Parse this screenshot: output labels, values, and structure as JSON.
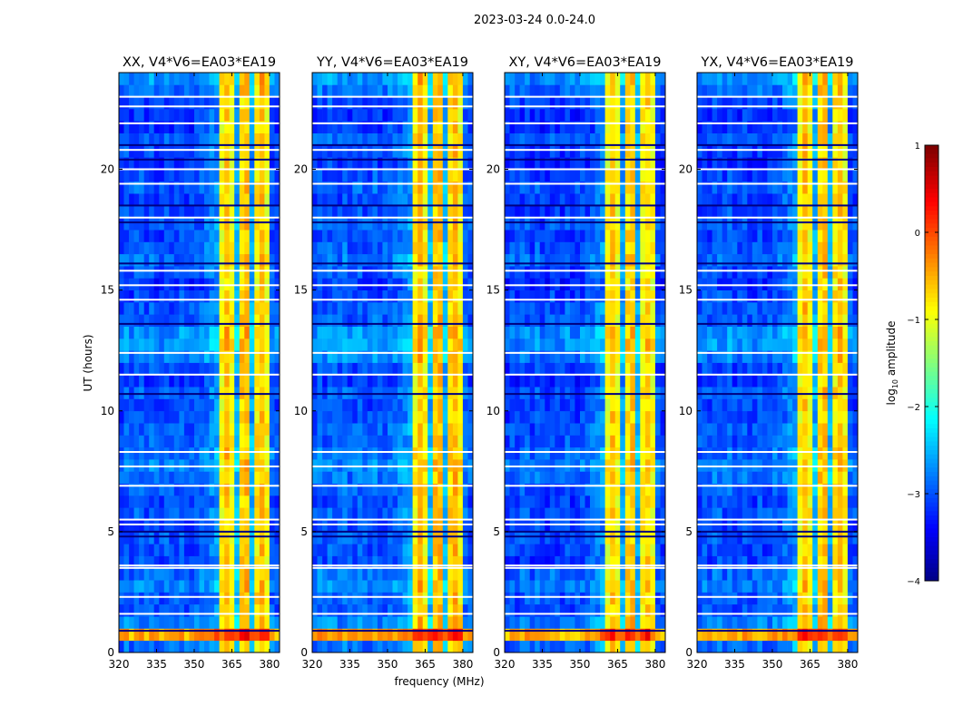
{
  "chart_data": {
    "type": "heatmap",
    "title": "2023-03-24 0.0-24.0",
    "xlabel": "frequency (MHz)",
    "ylabel": "UT (hours)",
    "xlim": [
      320,
      384
    ],
    "ylim": [
      0,
      24
    ],
    "xticks": [
      320,
      335,
      350,
      365,
      380
    ],
    "yticks": [
      0,
      5,
      10,
      15,
      20
    ],
    "freq_bin_mhz": 2,
    "time_bin_hours": 0.5,
    "panels": [
      {
        "title": "XX, V4*V6=EA03*EA19",
        "offset": 0.0
      },
      {
        "title": "YY, V4*V6=EA03*EA19",
        "offset": 0.05
      },
      {
        "title": "XY, V4*V6=EA03*EA19",
        "offset": -0.05
      },
      {
        "title": "YX, V4*V6=EA03*EA19",
        "offset": 0.0
      }
    ],
    "freq_profile_log10": [
      -3.1,
      -3.0,
      -3.1,
      -3.0,
      -3.0,
      -3.1,
      -3.0,
      -3.1,
      -3.1,
      -3.0,
      -3.1,
      -3.1,
      -3.0,
      -3.1,
      -3.1,
      -3.0,
      -3.0,
      -2.9,
      -2.8,
      -2.7,
      -0.9,
      -0.6,
      -0.9,
      -2.6,
      -0.7,
      -0.6,
      -2.6,
      -0.8,
      -0.6,
      -0.9,
      -3.0,
      -3.1
    ],
    "time_offsets": [
      0.2,
      2.6,
      0.3,
      0.1,
      0.1,
      0.3,
      0.2,
      0.0,
      0.0,
      0.1,
      0.0,
      0.1,
      0.0,
      0.1,
      0.2,
      0.3,
      0.2,
      0.1,
      0.1,
      0.0,
      0.0,
      0.1,
      -0.1,
      0.0,
      0.3,
      0.4,
      0.4,
      0.1,
      0.1,
      0.0,
      -0.1,
      0.0,
      0.2,
      0.1,
      0.0,
      0.1,
      0.0,
      0.0,
      0.1,
      0.0,
      -0.1,
      0.0,
      0.1,
      -0.1,
      -0.1,
      0.0,
      0.2,
      0.4
    ],
    "flagged_hours": [
      1.6,
      2.3,
      3.5,
      3.6,
      5.3,
      5.5,
      6.9,
      7.7,
      8.3,
      11.5,
      12.4,
      14.6,
      15.2,
      15.8,
      18.0,
      19.4,
      20.0,
      20.8,
      21.9,
      22.6,
      23.0
    ],
    "dropout_hours": [
      0.9,
      4.8,
      5.0,
      10.7,
      13.6,
      16.1,
      17.8,
      18.5,
      20.4,
      21.0
    ],
    "colorbar": {
      "label": "log",
      "label_sub": "10",
      "label_rest": " amplitude",
      "range": [
        -4,
        1
      ],
      "ticks": [
        "1",
        "0",
        "−1",
        "−2",
        "−3",
        "−4"
      ],
      "cmap": "jet"
    }
  }
}
